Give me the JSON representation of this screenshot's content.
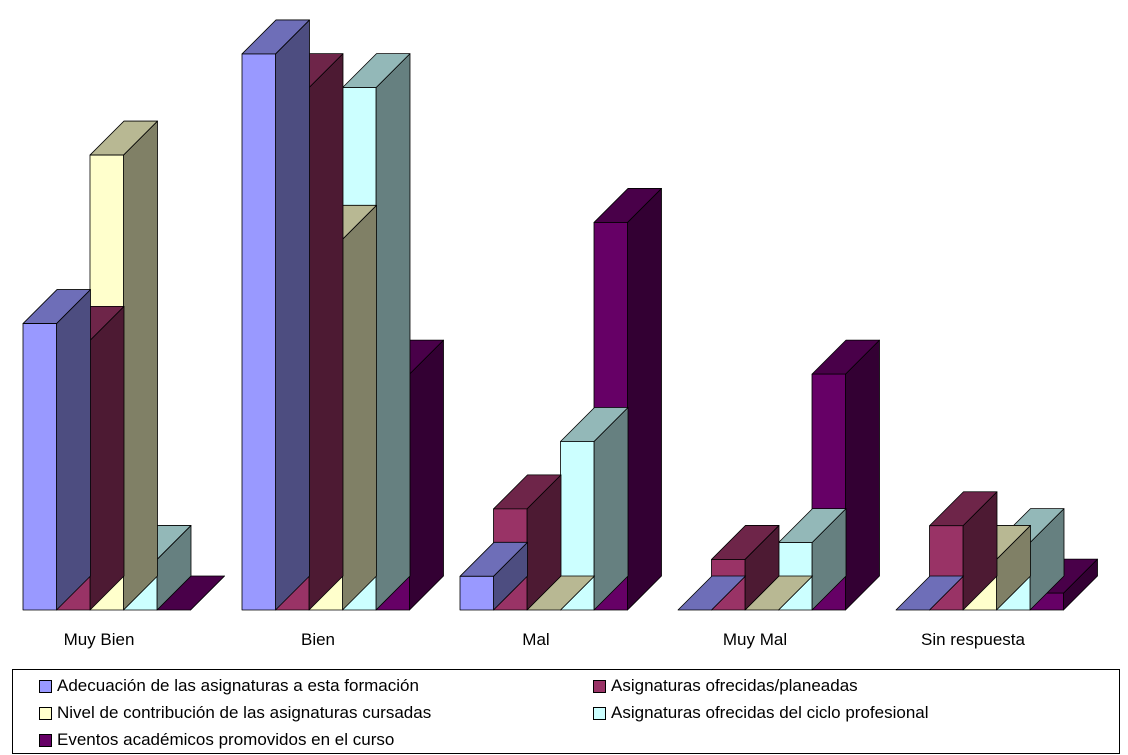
{
  "chart_data": {
    "type": "bar",
    "categories": [
      "Muy Bien",
      "Bien",
      "Mal",
      "Muy Mal",
      "Sin respuesta"
    ],
    "series": [
      {
        "name": "Adecuación de las asignaturas a esta formación",
        "values": [
          17,
          33,
          2,
          0,
          0
        ],
        "color": "#9999FF"
      },
      {
        "name": "Asignaturas ofrecidas/planeadas",
        "values": [
          16,
          31,
          6,
          3,
          5
        ],
        "color": "#993366"
      },
      {
        "name": "Nivel de contribución de las asignaturas cursadas",
        "values": [
          27,
          22,
          0,
          0,
          3
        ],
        "color": "#FFFFCC"
      },
      {
        "name": "Asignaturas ofrecidas del ciclo profesional",
        "values": [
          3,
          31,
          10,
          4,
          4
        ],
        "color": "#CCFFFF"
      },
      {
        "name": "Eventos académicos promovidos en el curso",
        "values": [
          0,
          14,
          23,
          14,
          1
        ],
        "color": "#660066"
      }
    ],
    "ylim": [
      0,
      33
    ],
    "three_d": true,
    "grid": false,
    "legend_position": "bottom"
  }
}
